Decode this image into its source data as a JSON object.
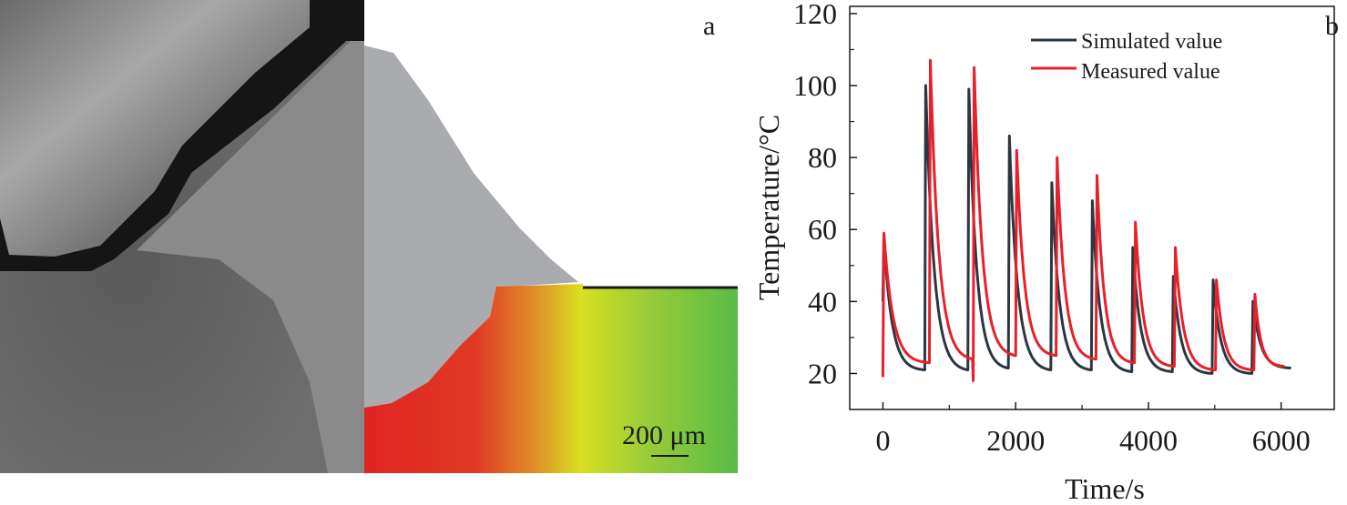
{
  "panel_a": {
    "label": "a",
    "scale_bar": "200 μm"
  },
  "chart_data": {
    "type": "line",
    "panel_label": "b",
    "title": "",
    "xlabel": "Time/s",
    "ylabel": "Temperature/°C",
    "xlim": [
      -500,
      6800
    ],
    "ylim": [
      10,
      122
    ],
    "xticks": [
      0,
      2000,
      4000,
      6000
    ],
    "yticks": [
      20,
      40,
      60,
      80,
      100,
      120
    ],
    "grid": false,
    "legend": {
      "placement": "top-right",
      "entries": [
        "Simulated value",
        "Measured value"
      ]
    },
    "series": [
      {
        "name": "Simulated value",
        "color": "#2b3640",
        "cycles": [
          {
            "start": 0,
            "base": 40,
            "peak": 58,
            "end": 620,
            "end_value": 21
          },
          {
            "start": 630,
            "base": 21,
            "peak": 100,
            "end": 1270,
            "end_value": 21
          },
          {
            "start": 1280,
            "base": 21,
            "peak": 99,
            "end": 1880,
            "end_value": 21.5
          },
          {
            "start": 1890,
            "base": 21.5,
            "peak": 86,
            "end": 2520,
            "end_value": 21
          },
          {
            "start": 2530,
            "base": 21,
            "peak": 73,
            "end": 3130,
            "end_value": 21
          },
          {
            "start": 3140,
            "base": 21,
            "peak": 68,
            "end": 3740,
            "end_value": 20.5
          },
          {
            "start": 3750,
            "base": 20.5,
            "peak": 55,
            "end": 4350,
            "end_value": 20.5
          },
          {
            "start": 4360,
            "base": 20.5,
            "peak": 47,
            "end": 4950,
            "end_value": 20
          },
          {
            "start": 4960,
            "base": 20,
            "peak": 46,
            "end": 5550,
            "end_value": 20
          },
          {
            "start": 5560,
            "base": 20,
            "peak": 40,
            "end": 6150,
            "end_value": 21.5
          }
        ]
      },
      {
        "name": "Measured value",
        "color": "#e8202a",
        "cycles": [
          {
            "start": 0,
            "base": 19,
            "peak": 59,
            "end": 690,
            "end_value": 23
          },
          {
            "start": 700,
            "base": 23,
            "peak": 107,
            "end": 1350,
            "end_value": 24
          },
          {
            "start": 1360,
            "base": 18,
            "peak": 105,
            "end": 1990,
            "end_value": 25
          },
          {
            "start": 2000,
            "base": 25,
            "peak": 82,
            "end": 2600,
            "end_value": 25
          },
          {
            "start": 2610,
            "base": 25,
            "peak": 80,
            "end": 3200,
            "end_value": 24
          },
          {
            "start": 3210,
            "base": 24,
            "peak": 75,
            "end": 3780,
            "end_value": 23
          },
          {
            "start": 3790,
            "base": 23,
            "peak": 62,
            "end": 4380,
            "end_value": 22
          },
          {
            "start": 4390,
            "base": 22,
            "peak": 55,
            "end": 5000,
            "end_value": 21
          },
          {
            "start": 5010,
            "base": 21,
            "peak": 46,
            "end": 5580,
            "end_value": 21
          },
          {
            "start": 5590,
            "base": 21,
            "peak": 42,
            "end": 6050,
            "end_value": 22
          }
        ]
      }
    ]
  }
}
